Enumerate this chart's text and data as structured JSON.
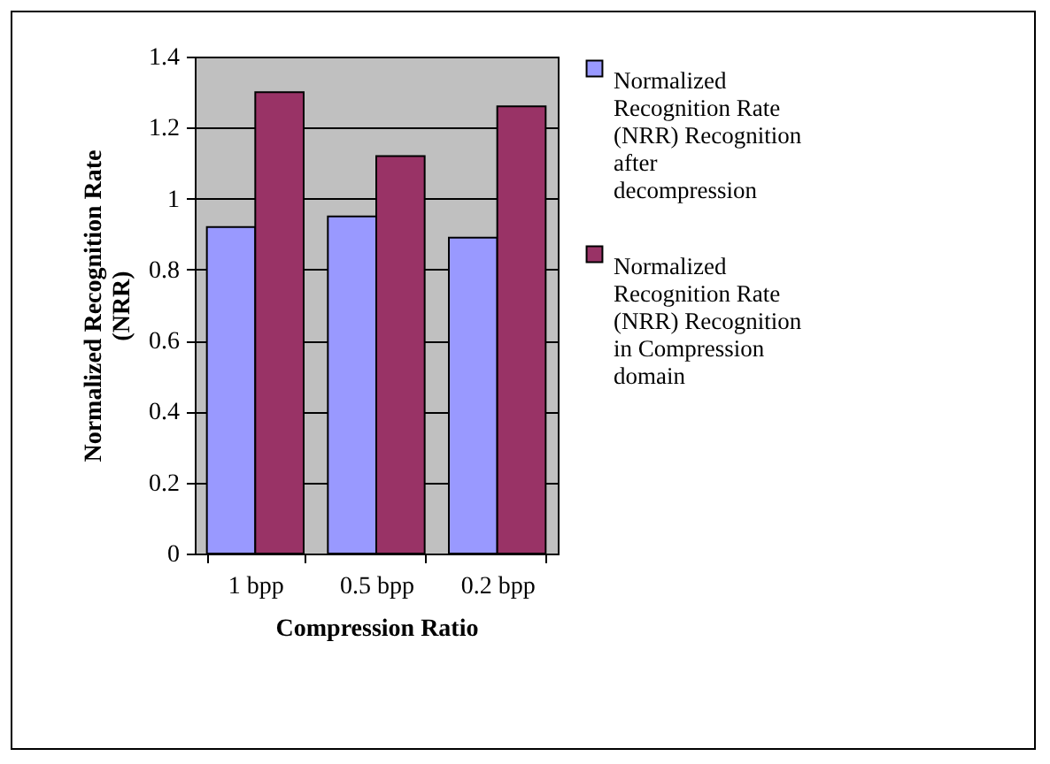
{
  "chart_data": {
    "type": "bar",
    "xlabel": "Compression Ratio",
    "ylabel": "Normalized Recognition Rate (NRR)",
    "categories": [
      "1 bpp",
      "0.5 bpp",
      "0.2 bpp"
    ],
    "series": [
      {
        "name": "Normalized Recognition Rate (NRR) Recognition after decompression",
        "color": "#9999ff",
        "values": [
          0.92,
          0.95,
          0.89
        ]
      },
      {
        "name": "Normalized Recognition Rate (NRR) Recognition in Compression domain",
        "color": "#993366",
        "values": [
          1.3,
          1.12,
          1.26
        ]
      }
    ],
    "ylim": [
      0,
      1.4
    ],
    "yticks": [
      0,
      0.2,
      0.4,
      0.6,
      0.8,
      1,
      1.2,
      1.4
    ],
    "grid": "y",
    "legend": "right"
  }
}
